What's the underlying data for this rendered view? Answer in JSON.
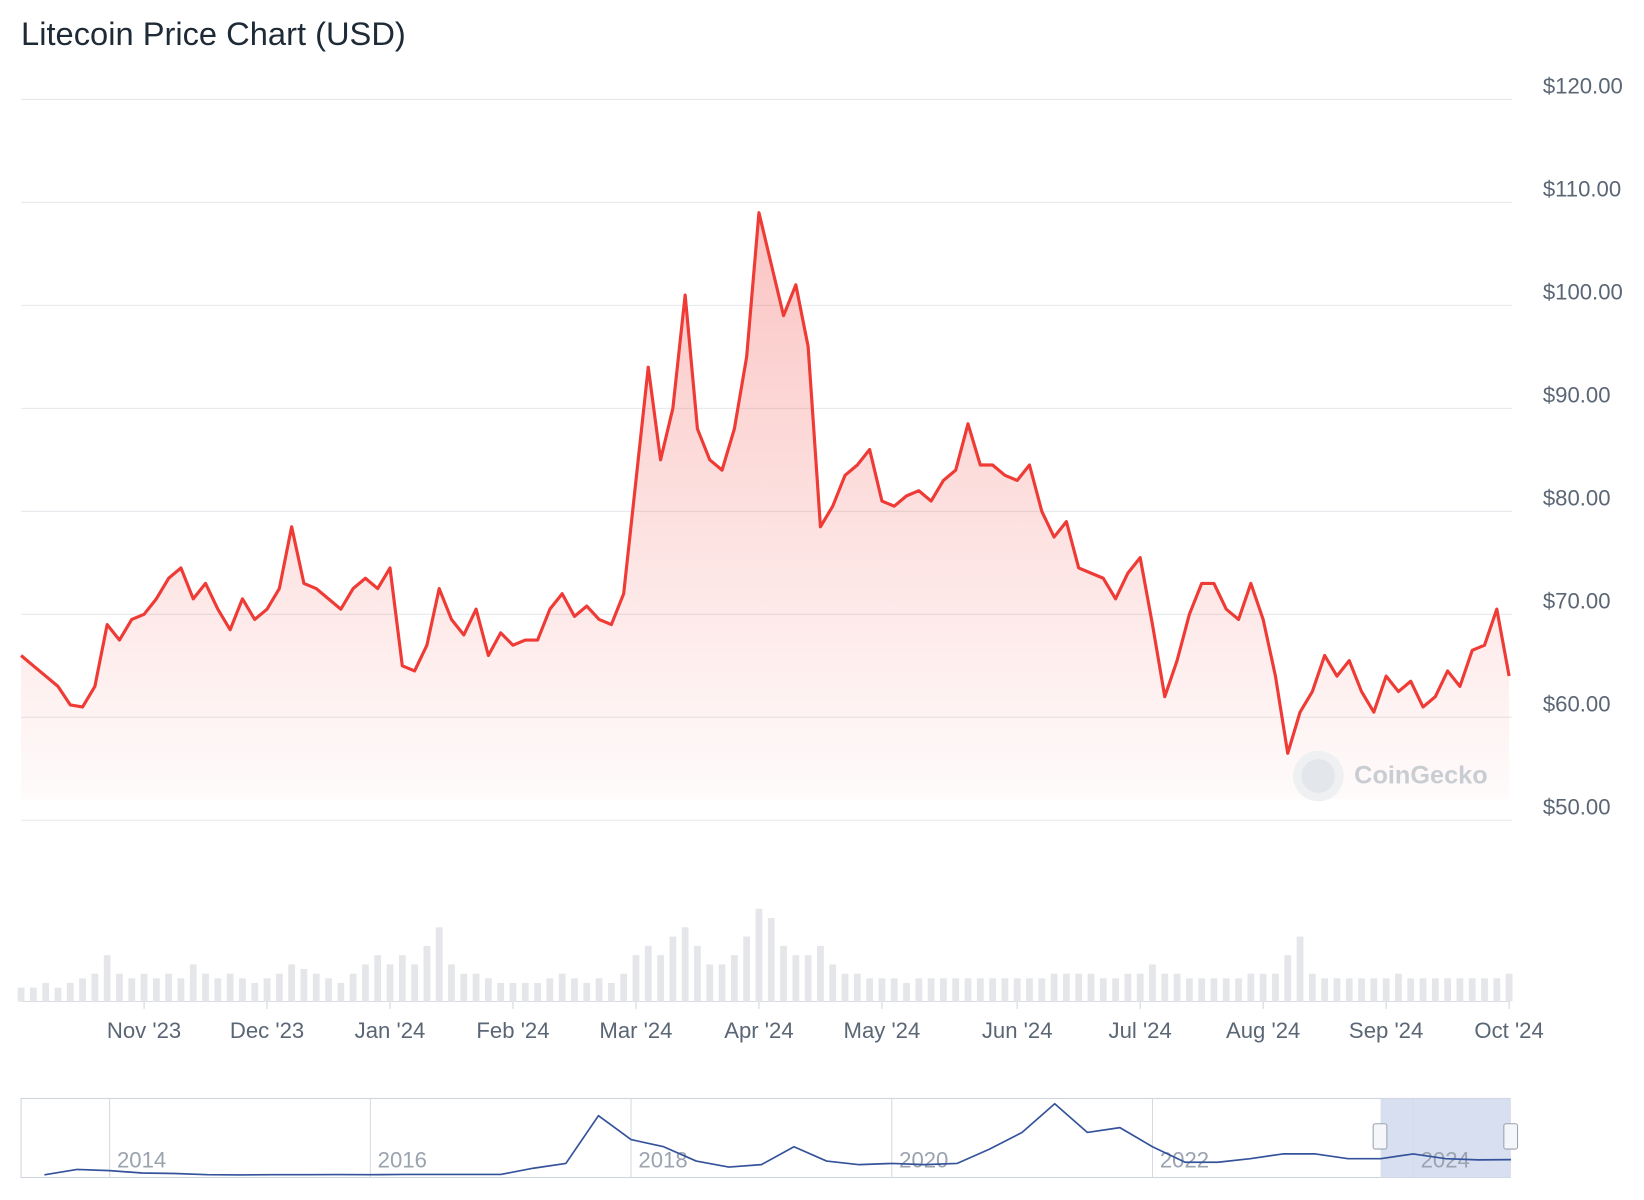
{
  "chart_data": [
    {
      "type": "line",
      "title": "Litecoin Price Chart (USD)",
      "watermark": "CoinGecko",
      "color": "#ef3b36",
      "grid": true,
      "categories": [
        null,
        null,
        null,
        null,
        null,
        null,
        null,
        null,
        null,
        null,
        "Nov '23",
        null,
        null,
        null,
        null,
        null,
        null,
        null,
        null,
        null,
        "Dec '23",
        null,
        null,
        null,
        null,
        null,
        null,
        null,
        null,
        null,
        "Jan '24",
        null,
        null,
        null,
        null,
        null,
        null,
        null,
        null,
        null,
        "Feb '24",
        null,
        null,
        null,
        null,
        null,
        null,
        null,
        null,
        null,
        "Mar '24",
        null,
        null,
        null,
        null,
        null,
        null,
        null,
        null,
        null,
        "Apr '24",
        null,
        null,
        null,
        null,
        null,
        null,
        null,
        null,
        null,
        "May '24",
        null,
        null,
        null,
        null,
        null,
        null,
        null,
        null,
        null,
        null,
        "Jun '24",
        null,
        null,
        null,
        null,
        null,
        null,
        null,
        null,
        null,
        "Jul '24",
        null,
        null,
        null,
        null,
        null,
        null,
        null,
        null,
        null,
        "Aug '24",
        null,
        null,
        null,
        null,
        null,
        null,
        null,
        null,
        null,
        "Sep '24",
        null,
        null,
        null,
        null,
        null,
        null,
        null,
        null,
        null,
        "Oct '24"
      ],
      "values": [
        66,
        65,
        64,
        63,
        61.2,
        61,
        63,
        69,
        67.5,
        69.5,
        70,
        71.5,
        73.5,
        74.5,
        71.5,
        73,
        70.5,
        68.5,
        71.5,
        69.5,
        70.5,
        72.5,
        78.5,
        73,
        72.5,
        71.5,
        70.5,
        72.5,
        73.5,
        72.5,
        74.5,
        65,
        64.5,
        67,
        72.5,
        69.5,
        68,
        70.5,
        66,
        68.2,
        67,
        67.5,
        67.5,
        70.5,
        72,
        69.8,
        70.8,
        69.5,
        69,
        72,
        83,
        94,
        85,
        90,
        101,
        88,
        85,
        84,
        88,
        95,
        109,
        104,
        99,
        102,
        96,
        78.5,
        80.5,
        83.5,
        84.5,
        86,
        81,
        80.5,
        81.5,
        82,
        81,
        83,
        84,
        88.5,
        84.5,
        84.5,
        83.5,
        83,
        84.5,
        80,
        77.5,
        79,
        74.5,
        74,
        73.5,
        71.5,
        74,
        75.5,
        69,
        62,
        65.5,
        70,
        73,
        73,
        70.5,
        69.5,
        73,
        69.5,
        64,
        56.5,
        60.5,
        62.5,
        66,
        64,
        65.5,
        62.5,
        60.5,
        64,
        62.5,
        63.5,
        61,
        62,
        64.5,
        63,
        66.5,
        67,
        70.5,
        64
      ],
      "ylim": [
        50,
        120
      ],
      "yticks": [
        {
          "value": 50,
          "label": "$50.00"
        },
        {
          "value": 60,
          "label": "$60.00"
        },
        {
          "value": 70,
          "label": "$70.00"
        },
        {
          "value": 80,
          "label": "$80.00"
        },
        {
          "value": 90,
          "label": "$90.00"
        },
        {
          "value": 100,
          "label": "$100.00"
        },
        {
          "value": 110,
          "label": "$110.00"
        },
        {
          "value": 120,
          "label": "$120.00"
        }
      ]
    },
    {
      "type": "bar",
      "color": "#e4e6e9",
      "values": [
        1.5,
        1.5,
        2,
        1.5,
        2,
        2.5,
        3,
        5,
        3,
        2.5,
        3,
        2.5,
        3,
        2.5,
        4,
        3,
        2.5,
        3,
        2.5,
        2,
        2.5,
        3,
        4,
        3.5,
        3,
        2.5,
        2,
        3,
        4,
        5,
        4,
        5,
        4,
        6,
        8,
        4,
        3,
        3,
        2.5,
        2,
        2,
        2,
        2,
        2.5,
        3,
        2.5,
        2,
        2.5,
        2,
        3,
        5,
        6,
        5,
        7,
        8,
        6,
        4,
        4,
        5,
        7,
        10,
        9,
        6,
        5,
        5,
        6,
        4,
        3,
        3,
        2.5,
        2.5,
        2.5,
        2,
        2.5,
        2.5,
        2.5,
        2.5,
        2.5,
        2.5,
        2.5,
        2.5,
        2.5,
        2.5,
        2.5,
        3,
        3,
        3,
        3,
        2.5,
        2.5,
        3,
        3,
        4,
        3,
        3,
        2.5,
        2.5,
        2.5,
        2.5,
        2.5,
        3,
        3,
        3,
        5,
        7,
        3,
        2.5,
        2.5,
        2.5,
        2.5,
        2.5,
        2.5,
        3,
        2.5,
        2.5,
        2.5,
        2.5,
        2.5,
        2.5,
        2.5,
        2.5,
        3
      ]
    },
    {
      "type": "line",
      "color": "#34539b",
      "categories": [
        null,
        null,
        "2014",
        null,
        null,
        null,
        null,
        null,
        null,
        null,
        "2016",
        null,
        null,
        null,
        null,
        null,
        null,
        null,
        "2018",
        null,
        null,
        null,
        null,
        null,
        null,
        null,
        "2020",
        null,
        null,
        null,
        null,
        null,
        null,
        null,
        "2022",
        null,
        null,
        null,
        null,
        null,
        null,
        null,
        "2024",
        null,
        null,
        null
      ],
      "values": [
        2.5,
        25,
        20,
        10,
        8,
        3,
        2,
        3,
        3,
        3.5,
        3,
        4,
        4,
        4,
        4,
        30,
        50,
        250,
        150,
        120,
        60,
        35,
        45,
        120,
        60,
        45,
        50,
        45,
        50,
        110,
        180,
        300,
        180,
        200,
        120,
        55,
        55,
        70,
        90,
        90,
        70,
        70,
        90,
        70,
        65,
        66
      ]
    }
  ]
}
